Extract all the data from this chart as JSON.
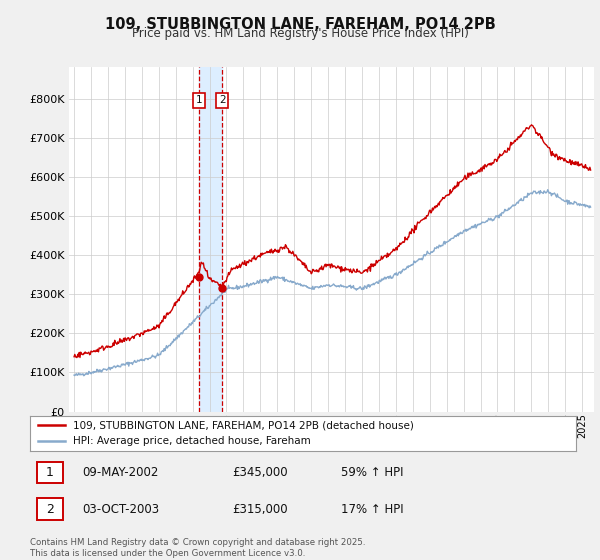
{
  "title": "109, STUBBINGTON LANE, FAREHAM, PO14 2PB",
  "subtitle": "Price paid vs. HM Land Registry's House Price Index (HPI)",
  "legend_line1": "109, STUBBINGTON LANE, FAREHAM, PO14 2PB (detached house)",
  "legend_line2": "HPI: Average price, detached house, Fareham",
  "transaction1_date": "09-MAY-2002",
  "transaction1_price": "£345,000",
  "transaction1_hpi": "59% ↑ HPI",
  "transaction2_date": "03-OCT-2003",
  "transaction2_price": "£315,000",
  "transaction2_hpi": "17% ↑ HPI",
  "footer": "Contains HM Land Registry data © Crown copyright and database right 2025.\nThis data is licensed under the Open Government Licence v3.0.",
  "red_color": "#cc0000",
  "blue_color": "#88aacc",
  "grid_color": "#cccccc",
  "background_color": "#f0f0f0",
  "plot_bg_color": "#ffffff",
  "shade_color": "#ddeeff",
  "ylim_min": 0,
  "ylim_max": 880000,
  "transaction1_year": 2002.36,
  "transaction1_value": 345000,
  "transaction2_year": 2003.75,
  "transaction2_value": 315000,
  "xmin": 1994.7,
  "xmax": 2025.7
}
